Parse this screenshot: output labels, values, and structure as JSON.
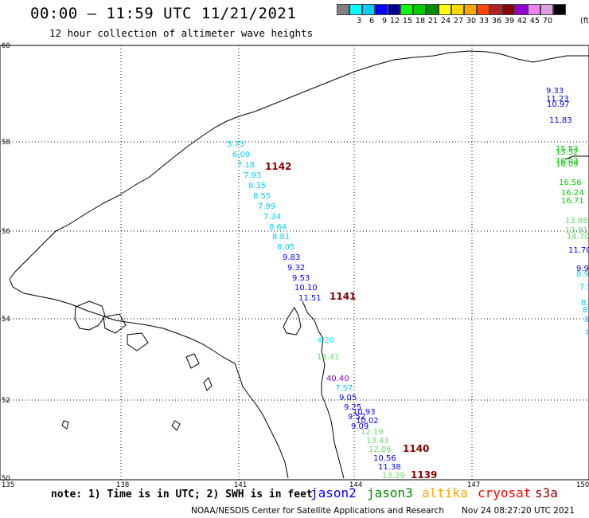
{
  "header": {
    "title": "00:00 – 11:59 UTC 11/21/2021",
    "subtitle": "12 hour collection of altimeter wave heights"
  },
  "colorbar": {
    "colors": [
      "#808080",
      "#00ffff",
      "#00cfff",
      "#0000ff",
      "#00008f",
      "#00ff00",
      "#00cd00",
      "#008b00",
      "#ffff00",
      "#ffd700",
      "#ffa500",
      "#ff4500",
      "#b22222",
      "#8b0000",
      "#9400d3",
      "#ee82ee",
      "#dda0dd",
      "#000000"
    ],
    "labels": [
      "3",
      "6",
      "9",
      "12",
      "15",
      "18",
      "21",
      "24",
      "27",
      "30",
      "33",
      "36",
      "39",
      "42",
      "45",
      "70"
    ],
    "unit": "(ft)"
  },
  "map": {
    "lat_ticks": [
      "60",
      "58",
      "56",
      "54",
      "52",
      "50"
    ],
    "lon_ticks": [
      "135",
      "138",
      "141",
      "144",
      "147",
      "150"
    ],
    "track_labels": [
      {
        "text": "1142",
        "color": "#8b0000"
      },
      {
        "text": "1141",
        "color": "#8b0000"
      },
      {
        "text": "1140",
        "color": "#8b0000"
      },
      {
        "text": "1139",
        "color": "#8b0000"
      }
    ],
    "swh_readings": [
      {
        "v": "3.73",
        "c": "#00cfff"
      },
      {
        "v": "6.09",
        "c": "#00cfff"
      },
      {
        "v": "7.18",
        "c": "#00cfff"
      },
      {
        "v": "7.93",
        "c": "#00cfff"
      },
      {
        "v": "8.35",
        "c": "#00cfff"
      },
      {
        "v": "8.55",
        "c": "#00cfff"
      },
      {
        "v": "7.99",
        "c": "#00cfff"
      },
      {
        "v": "7.34",
        "c": "#00cfff"
      },
      {
        "v": "8.64",
        "c": "#00cfff"
      },
      {
        "v": "8.81",
        "c": "#00cfff"
      },
      {
        "v": "8.05",
        "c": "#00cfff"
      },
      {
        "v": "9.83",
        "c": "#0000ff"
      },
      {
        "v": "9.32",
        "c": "#0000ff"
      },
      {
        "v": "9.53",
        "c": "#0000ff"
      },
      {
        "v": "10.10",
        "c": "#0000ff"
      },
      {
        "v": "11.51",
        "c": "#0000ff"
      },
      {
        "v": "4.20",
        "c": "#00ffff"
      },
      {
        "v": "13.41",
        "c": "#66dd66"
      },
      {
        "v": "40.40",
        "c": "#9400d3"
      },
      {
        "v": "7.57",
        "c": "#00cfff"
      },
      {
        "v": "9.05",
        "c": "#0000ff"
      },
      {
        "v": "9.25",
        "c": "#0000ff"
      },
      {
        "v": "9.52",
        "c": "#0000ff"
      },
      {
        "v": "9.09",
        "c": "#0000ff"
      },
      {
        "v": "10.93",
        "c": "#0000ff"
      },
      {
        "v": "10.02",
        "c": "#0000ff"
      },
      {
        "v": "12.19",
        "c": "#66dd66"
      },
      {
        "v": "13.43",
        "c": "#66dd66"
      },
      {
        "v": "12.06",
        "c": "#66dd66"
      },
      {
        "v": "10.56",
        "c": "#0000ff"
      },
      {
        "v": "11.38",
        "c": "#0000ff"
      },
      {
        "v": "13.29",
        "c": "#66dd66"
      },
      {
        "v": "9.33",
        "c": "#0000ff"
      },
      {
        "v": "11.23",
        "c": "#0000ff"
      },
      {
        "v": "10.97",
        "c": "#0000ff"
      },
      {
        "v": "11.83",
        "c": "#0000ff"
      },
      {
        "v": "15.53",
        "c": "#00cd00"
      },
      {
        "v": "15.52",
        "c": "#00cd00"
      },
      {
        "v": "16.03",
        "c": "#00cd00"
      },
      {
        "v": "16.09",
        "c": "#00cd00"
      },
      {
        "v": "16.56",
        "c": "#00cd00"
      },
      {
        "v": "16.24",
        "c": "#00cd00"
      },
      {
        "v": "16.71",
        "c": "#00cd00"
      },
      {
        "v": "13.88",
        "c": "#66dd66"
      },
      {
        "v": "13.91",
        "c": "#66dd66"
      },
      {
        "v": "14.70",
        "c": "#66dd66"
      },
      {
        "v": "11.70",
        "c": "#0000ff"
      },
      {
        "v": "9.9",
        "c": "#0000ff"
      },
      {
        "v": "8.9",
        "c": "#00cfff"
      },
      {
        "v": "7.5",
        "c": "#00cfff"
      },
      {
        "v": "8.",
        "c": "#00cfff"
      },
      {
        "v": "8",
        "c": "#00cfff"
      },
      {
        "v": "8",
        "c": "#00cfff"
      },
      {
        "v": "8",
        "c": "#00cfff"
      }
    ]
  },
  "note": "note: 1) Time is in UTC; 2) SWH is in feet",
  "legend": [
    {
      "name": "jason2",
      "color": "#0000ff"
    },
    {
      "name": "jason3",
      "color": "#008b00"
    },
    {
      "name": "altika",
      "color": "#ffa500"
    },
    {
      "name": "cryosat",
      "color": "#ff0000"
    },
    {
      "name": "s3a",
      "color": "#8b0000"
    }
  ],
  "footer": {
    "credit": "NOAA/NESDIS Center for Satellite Applications and Research",
    "timestamp": "Nov 24 08:27:20 UTC 2021"
  }
}
